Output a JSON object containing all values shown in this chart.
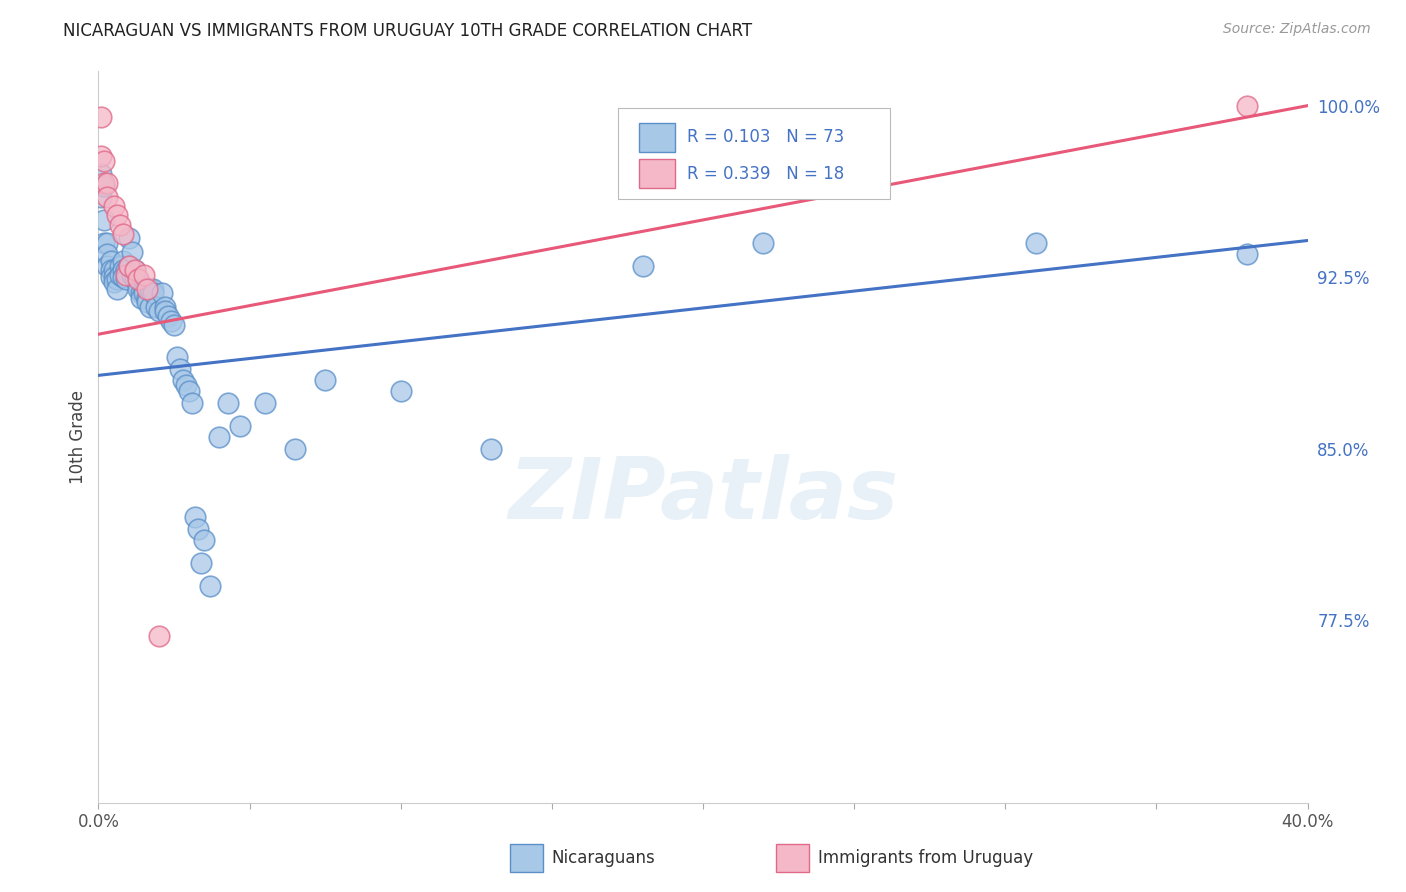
{
  "title": "NICARAGUAN VS IMMIGRANTS FROM URUGUAY 10TH GRADE CORRELATION CHART",
  "source": "Source: ZipAtlas.com",
  "ylabel": "10th Grade",
  "watermark": "ZIPatlas",
  "legend_blue_label": "Nicaraguans",
  "legend_pink_label": "Immigrants from Uruguay",
  "xlim": [
    0.0,
    0.4
  ],
  "ylim": [
    0.695,
    1.015
  ],
  "xticks": [
    0.0,
    0.05,
    0.1,
    0.15,
    0.2,
    0.25,
    0.3,
    0.35,
    0.4
  ],
  "xticklabels": [
    "0.0%",
    "",
    "",
    "",
    "",
    "",
    "",
    "",
    "40.0%"
  ],
  "yticks_right": [
    0.775,
    0.85,
    0.925,
    1.0
  ],
  "ytick_right_labels": [
    "77.5%",
    "85.0%",
    "92.5%",
    "100.0%"
  ],
  "blue_color": "#a8c8e8",
  "pink_color": "#f4b8c8",
  "blue_edge_color": "#5a8fc8",
  "pink_edge_color": "#e06888",
  "blue_line_color": "#4472c4",
  "pink_line_color": "#e85878",
  "text_blue_color": "#4472c4",
  "background_color": "#ffffff",
  "grid_color": "#cccccc",
  "blue_x": [
    0.001,
    0.001,
    0.002,
    0.002,
    0.002,
    0.003,
    0.003,
    0.003,
    0.004,
    0.004,
    0.004,
    0.005,
    0.005,
    0.005,
    0.006,
    0.006,
    0.007,
    0.007,
    0.008,
    0.008,
    0.008,
    0.009,
    0.009,
    0.01,
    0.01,
    0.011,
    0.011,
    0.012,
    0.012,
    0.013,
    0.013,
    0.013,
    0.014,
    0.014,
    0.015,
    0.015,
    0.016,
    0.016,
    0.017,
    0.017,
    0.018,
    0.018,
    0.019,
    0.02,
    0.021,
    0.022,
    0.022,
    0.023,
    0.024,
    0.025,
    0.026,
    0.027,
    0.028,
    0.029,
    0.03,
    0.031,
    0.032,
    0.033,
    0.034,
    0.035,
    0.037,
    0.04,
    0.043,
    0.047,
    0.055,
    0.065,
    0.075,
    0.1,
    0.13,
    0.18,
    0.22,
    0.31,
    0.38
  ],
  "blue_y": [
    0.97,
    0.96,
    0.965,
    0.95,
    0.94,
    0.94,
    0.935,
    0.93,
    0.932,
    0.928,
    0.925,
    0.928,
    0.925,
    0.923,
    0.924,
    0.92,
    0.93,
    0.926,
    0.932,
    0.928,
    0.925,
    0.928,
    0.924,
    0.942,
    0.93,
    0.936,
    0.926,
    0.928,
    0.924,
    0.924,
    0.922,
    0.92,
    0.918,
    0.916,
    0.92,
    0.918,
    0.916,
    0.914,
    0.92,
    0.912,
    0.92,
    0.918,
    0.912,
    0.91,
    0.918,
    0.912,
    0.91,
    0.908,
    0.906,
    0.904,
    0.89,
    0.885,
    0.88,
    0.878,
    0.875,
    0.87,
    0.82,
    0.815,
    0.8,
    0.81,
    0.79,
    0.855,
    0.87,
    0.86,
    0.87,
    0.85,
    0.88,
    0.875,
    0.85,
    0.93,
    0.94,
    0.94,
    0.935
  ],
  "pink_x": [
    0.001,
    0.001,
    0.002,
    0.002,
    0.003,
    0.003,
    0.005,
    0.006,
    0.007,
    0.008,
    0.009,
    0.01,
    0.012,
    0.013,
    0.015,
    0.016,
    0.02,
    0.38
  ],
  "pink_y": [
    0.995,
    0.978,
    0.976,
    0.966,
    0.966,
    0.96,
    0.956,
    0.952,
    0.948,
    0.944,
    0.926,
    0.93,
    0.928,
    0.924,
    0.926,
    0.92,
    0.768,
    1.0
  ],
  "blue_trendline": [
    0.882,
    0.941
  ],
  "pink_trendline": [
    0.9,
    1.0
  ]
}
